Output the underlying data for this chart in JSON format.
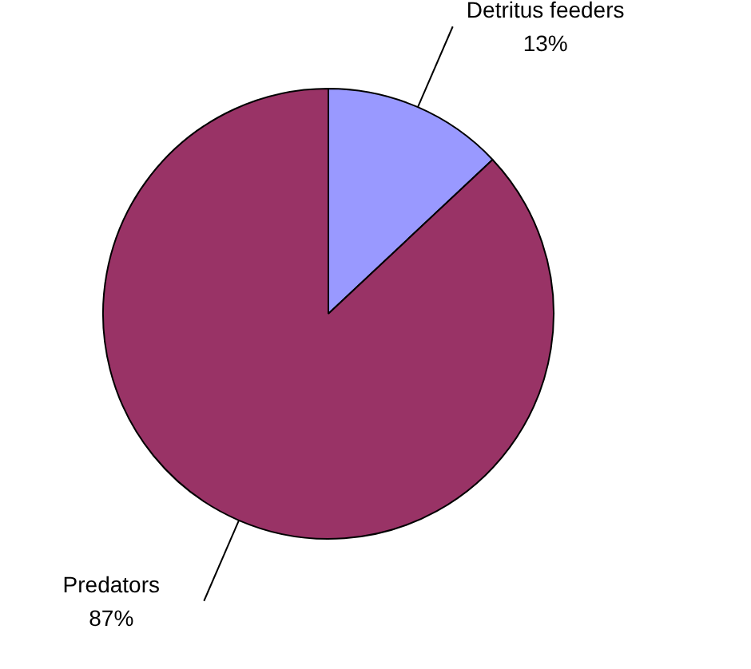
{
  "chart_data": {
    "type": "pie",
    "categories": [
      "Detritus feeders",
      "Predators"
    ],
    "values": [
      13,
      87
    ],
    "value_labels": [
      "13%",
      "87%"
    ],
    "colors": [
      "#9999ff",
      "#993366"
    ]
  }
}
